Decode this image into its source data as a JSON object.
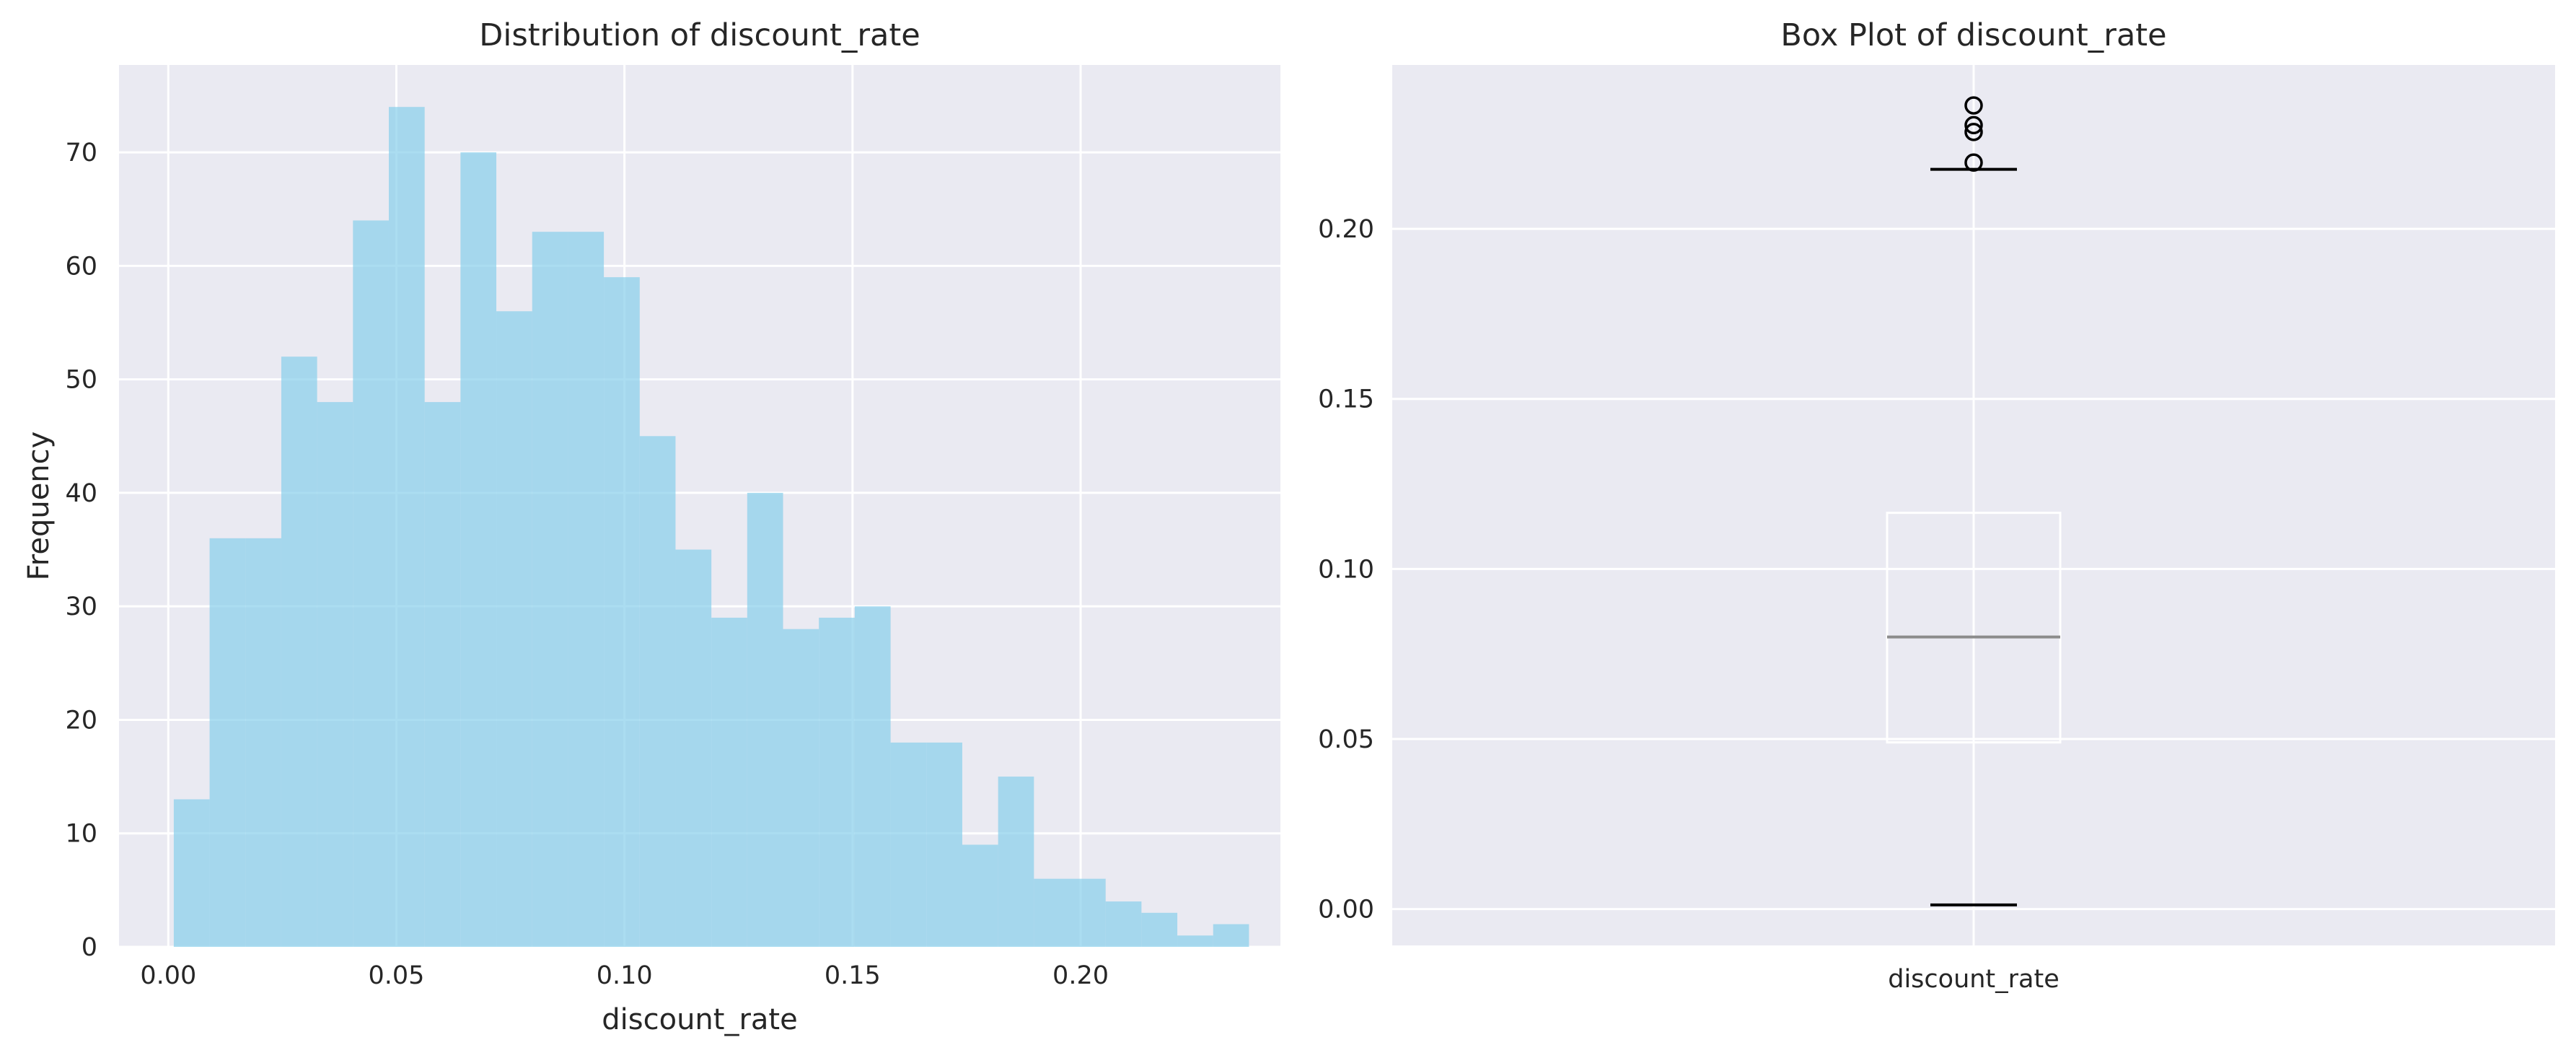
{
  "chart_data": [
    {
      "type": "bar",
      "title": "Distribution of discount_rate",
      "xlabel": "discount_rate",
      "ylabel": "Frequency",
      "xlim": [
        -0.0108,
        0.2438
      ],
      "ylim": [
        0,
        77.7
      ],
      "xticks": [
        0.0,
        0.05,
        0.1,
        0.15,
        0.2
      ],
      "xtick_labels": [
        "0.00",
        "0.05",
        "0.10",
        "0.15",
        "0.20"
      ],
      "yticks": [
        0,
        10,
        20,
        30,
        40,
        50,
        60,
        70
      ],
      "ytick_labels": [
        "0",
        "10",
        "20",
        "30",
        "40",
        "50",
        "60",
        "70"
      ],
      "bin_start": 0.0012,
      "bin_width": 0.007857,
      "values": [
        13,
        36,
        36,
        52,
        48,
        64,
        74,
        48,
        70,
        56,
        63,
        63,
        59,
        45,
        35,
        29,
        40,
        28,
        29,
        30,
        18,
        18,
        9,
        15,
        6,
        6,
        4,
        3,
        1,
        2
      ],
      "color": "#87ceeb",
      "alpha": 0.7,
      "grid": true
    },
    {
      "type": "box",
      "title": "Box Plot of discount_rate",
      "category": "discount_rate",
      "ylim": [
        -0.0107,
        0.2482
      ],
      "yticks": [
        0.0,
        0.05,
        0.1,
        0.15,
        0.2
      ],
      "ytick_labels": [
        "0.00",
        "0.05",
        "0.10",
        "0.15",
        "0.20"
      ],
      "whisker_low": 0.0012,
      "q1": 0.049,
      "median": 0.08,
      "q3": 0.1165,
      "whisker_high": 0.2175,
      "outliers": [
        0.2195,
        0.2285,
        0.2305,
        0.2363
      ],
      "grid": true
    }
  ]
}
